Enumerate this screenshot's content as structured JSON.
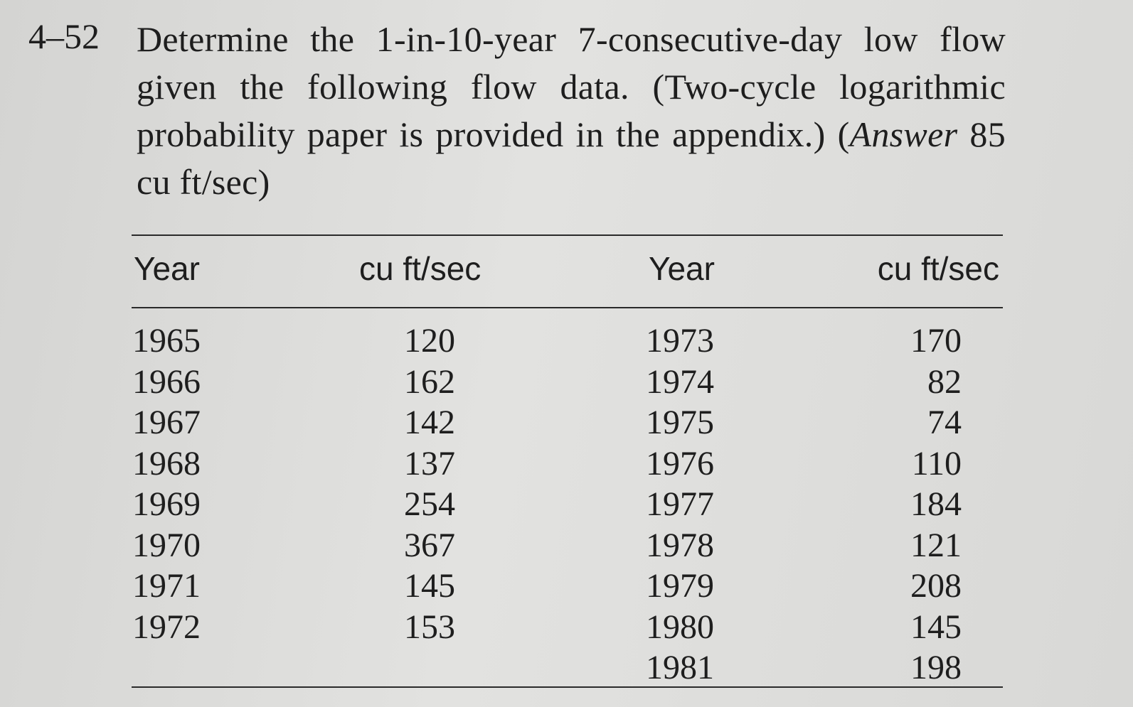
{
  "problem": {
    "number": "4–52",
    "text": "Determine the 1-in-10-year 7-consecutive-day low flow given the following flow data. (Two-cycle logarithmic probability paper is provided in the appendix.) (",
    "answer_label": "Answer",
    "answer_text": "85 cu ft/sec)"
  },
  "table": {
    "headers": [
      "Year",
      "cu ft/sec",
      "Year",
      "cu ft/sec"
    ],
    "left": {
      "years": [
        1965,
        1966,
        1967,
        1968,
        1969,
        1970,
        1971,
        1972
      ],
      "flows": [
        120,
        162,
        142,
        137,
        254,
        367,
        145,
        153
      ]
    },
    "right": {
      "years": [
        1973,
        1974,
        1975,
        1976,
        1977,
        1978,
        1979,
        1980,
        1981
      ],
      "flows": [
        170,
        82,
        74,
        110,
        184,
        121,
        208,
        145,
        198
      ]
    }
  }
}
